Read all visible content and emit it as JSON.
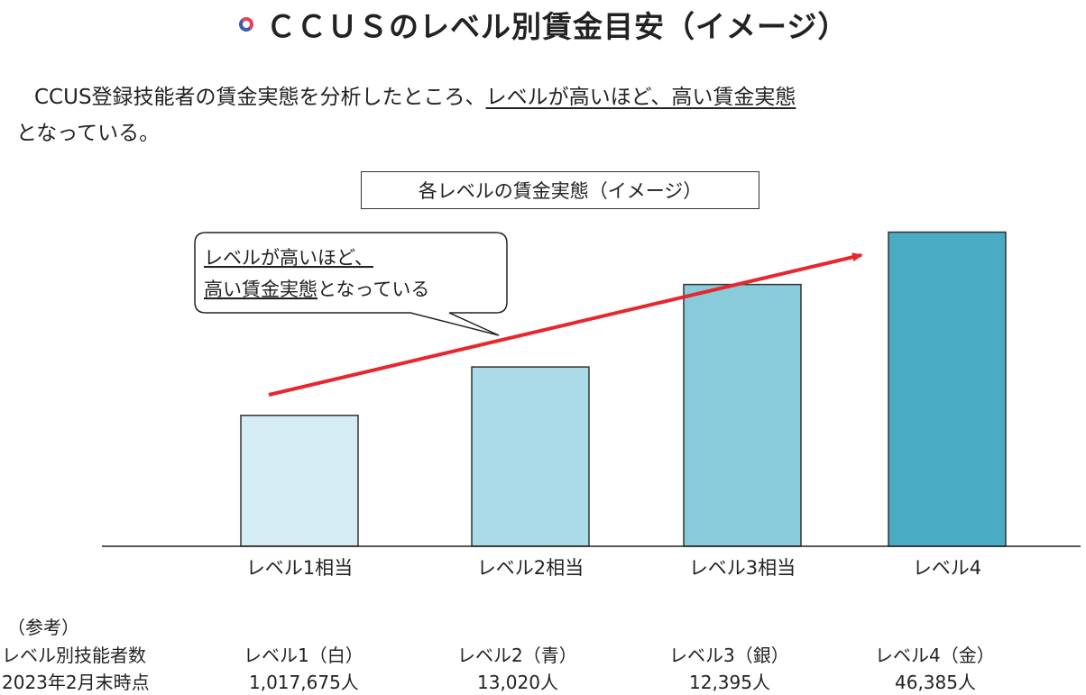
{
  "header": {
    "title": "ＣＣＵＳのレベル別賃金目安（イメージ）",
    "icon": "ring-icon"
  },
  "intro": {
    "line1_prefix": "CCUS登録技能者の賃金実態を分析したところ、",
    "line1_underlined": "レベルが高いほど、高い賃金実態",
    "line2": "となっている。"
  },
  "chart_data": {
    "type": "bar",
    "title": "各レベルの賃金実態（イメージ）",
    "categories": [
      "レベル1相当",
      "レベル2相当",
      "レベル3相当",
      "レベル4"
    ],
    "values": [
      1.0,
      1.37,
      2.0,
      2.4
    ],
    "value_unit": "relative (illustrative, no axis scale shown)",
    "colors": [
      "#d4edf4",
      "#abdbe8",
      "#88cbdb",
      "#4aabc4"
    ],
    "ylim": [
      0,
      2.5
    ],
    "grid": false,
    "trend_arrow": {
      "color": "#e8262e",
      "direction": "up-right"
    },
    "callout": {
      "line1": "レベルが高いほど、",
      "line2": "高い賃金実態となっている",
      "line2_underlined_part": "高い賃金実態",
      "line2_rest": "となっている"
    }
  },
  "reference": {
    "heading": "（参考）",
    "row_label_1": "レベル別技能者数",
    "row_label_2": "2023年2月末時点",
    "columns": [
      {
        "label": "レベル1（白）",
        "count": "1,017,675人"
      },
      {
        "label": "レベル2（青）",
        "count": "13,020人"
      },
      {
        "label": "レベル3（銀）",
        "count": "12,395人"
      },
      {
        "label": "レベル4（金）",
        "count": "46,385人"
      }
    ]
  }
}
